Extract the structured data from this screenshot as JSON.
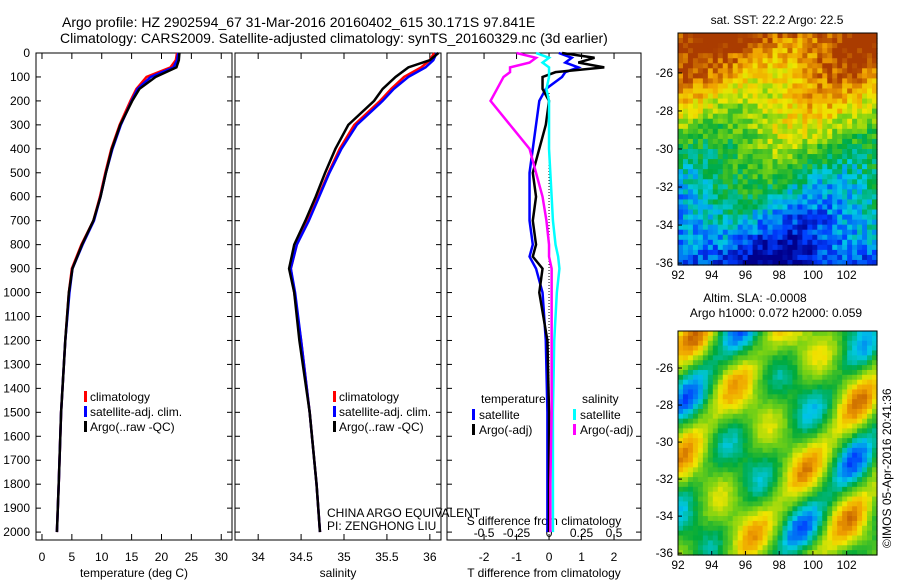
{
  "title_line1": "Argo profile: HZ 2902594_67 31-Mar-2016 20160402_615 30.171S 97.841E",
  "title_line2": "Climatology: CARS2009. Satellite-adjusted climatology: synTS_20160329.nc (3d earlier)",
  "float_info": {
    "line1": "CHINA ARGO EQUIVALENT",
    "line2": "PI: ZENGHONG LIU"
  },
  "credit": "©IMOS 05-Apr-2016 20:41:36",
  "colors": {
    "climatology": "#ff0000",
    "satellite": "#0000ff",
    "argo": "#000000",
    "sal_satellite": "#00ffff",
    "sal_argo": "#ff00ff"
  },
  "chart_data": [
    {
      "type": "line",
      "name": "temperature",
      "xlabel": "temperature (deg C)",
      "ylabel": "",
      "xlim": [
        -1,
        31.8
      ],
      "ylim": [
        2033,
        0
      ],
      "xticks": [
        0,
        5,
        10,
        15,
        20,
        25,
        30
      ],
      "yticks": [
        0,
        100,
        200,
        300,
        400,
        500,
        600,
        700,
        800,
        900,
        1000,
        1100,
        1200,
        1300,
        1400,
        1500,
        1600,
        1700,
        1800,
        1900,
        2000
      ],
      "legend": [
        "climatology",
        "satellite-adj. clim.",
        "Argo(..raw -QC)"
      ],
      "depth": [
        0,
        30,
        60,
        100,
        150,
        200,
        300,
        400,
        500,
        600,
        700,
        800,
        900,
        1000,
        1200,
        1500,
        1800,
        2000
      ],
      "series": [
        {
          "name": "climatology",
          "values": [
            22.6,
            22.4,
            21.5,
            17.5,
            15.8,
            14.8,
            13.0,
            11.6,
            10.6,
            9.7,
            8.6,
            6.6,
            5.0,
            4.5,
            3.9,
            3.2,
            2.8,
            2.5
          ]
        },
        {
          "name": "satellite-adj. clim.",
          "values": [
            22.8,
            22.6,
            22.0,
            18.2,
            16.0,
            15.0,
            13.2,
            11.8,
            10.7,
            9.8,
            8.7,
            6.8,
            5.1,
            4.6,
            3.9,
            3.2,
            2.8,
            2.5
          ]
        },
        {
          "name": "Argo(..raw -QC)",
          "values": [
            23.0,
            22.9,
            22.5,
            19.0,
            16.3,
            15.1,
            13.1,
            11.7,
            10.7,
            9.8,
            8.6,
            6.7,
            5.1,
            4.5,
            3.9,
            3.2,
            2.8,
            2.5
          ]
        }
      ]
    },
    {
      "type": "line",
      "name": "salinity",
      "xlabel": "salinity",
      "xlim": [
        33.73,
        36.13
      ],
      "ylim": [
        2033,
        0
      ],
      "xticks": [
        34,
        34.5,
        35,
        35.5,
        36
      ],
      "legend": [
        "climatology",
        "satellite-adj. clim.",
        "Argo(..raw -QC)"
      ],
      "depth": [
        0,
        30,
        60,
        100,
        150,
        200,
        300,
        400,
        500,
        600,
        700,
        800,
        900,
        1000,
        1200,
        1500,
        1800,
        2000
      ],
      "series": [
        {
          "name": "climatology",
          "values": [
            36.05,
            36.0,
            35.9,
            35.7,
            35.55,
            35.42,
            35.12,
            34.95,
            34.82,
            34.7,
            34.58,
            34.45,
            34.38,
            34.42,
            34.5,
            34.6,
            34.68,
            34.72
          ]
        },
        {
          "name": "satellite-adj. clim.",
          "values": [
            36.08,
            36.04,
            35.95,
            35.75,
            35.58,
            35.45,
            35.15,
            34.97,
            34.83,
            34.71,
            34.59,
            34.45,
            34.38,
            34.43,
            34.5,
            34.6,
            34.68,
            34.72
          ]
        },
        {
          "name": "Argo(..raw -QC)",
          "values": [
            36.1,
            36.0,
            35.75,
            35.6,
            35.45,
            35.35,
            35.05,
            34.9,
            34.78,
            34.67,
            34.55,
            34.42,
            34.36,
            34.42,
            34.48,
            34.6,
            34.68,
            34.72
          ]
        }
      ]
    },
    {
      "type": "line",
      "name": "differences",
      "xlabel": "T difference from climatology",
      "x2label": "S difference from climatology",
      "xlim": [
        -3.14,
        2.83
      ],
      "ylim": [
        2033,
        0
      ],
      "xticks": [
        -2,
        -1,
        0,
        1,
        2
      ],
      "x2ticks": [
        -0.5,
        -0.25,
        0,
        0.25,
        0.5
      ],
      "legend_titles": [
        "temperature",
        "salinity"
      ],
      "legend": [
        "satellite",
        "Argo(-adj)",
        "satellite",
        "Argo(-adj)"
      ],
      "depth": [
        0,
        20,
        40,
        60,
        80,
        100,
        150,
        200,
        300,
        400,
        500,
        600,
        700,
        800,
        850,
        900,
        1000,
        1200,
        1500,
        1800,
        2000
      ],
      "series": [
        {
          "name": "T satellite",
          "values": [
            0.3,
            0.7,
            0.5,
            0.9,
            0.5,
            0.4,
            -0.1,
            -0.3,
            -0.4,
            -0.5,
            -0.6,
            -0.6,
            -0.6,
            -0.5,
            -0.6,
            -0.4,
            -0.2,
            -0.1,
            -0.05,
            -0.05,
            -0.05
          ]
        },
        {
          "name": "T Argo(-adj)",
          "values": [
            0.4,
            1.4,
            0.9,
            1.7,
            0.2,
            -0.2,
            -0.2,
            0.0,
            -0.1,
            -0.3,
            -0.5,
            -0.4,
            -0.5,
            -0.4,
            -0.5,
            -0.2,
            -0.3,
            -0.05,
            0.0,
            0.0,
            0.0
          ]
        },
        {
          "name": "S satellite",
          "values": [
            -0.1,
            0.0,
            -0.05,
            0.0,
            0.0,
            0.0,
            -0.02,
            0.0,
            0.0,
            0.0,
            0.01,
            0.02,
            0.03,
            0.05,
            0.07,
            0.08,
            0.06,
            0.04,
            0.03,
            0.03,
            0.03
          ]
        },
        {
          "name": "S Argo(-adj)",
          "values": [
            -0.25,
            -0.1,
            -0.15,
            -0.3,
            -0.3,
            -0.35,
            -0.4,
            -0.45,
            -0.3,
            -0.15,
            -0.1,
            -0.05,
            -0.02,
            0.0,
            0.0,
            0.02,
            0.02,
            0.02,
            0.02,
            0.01,
            0.01
          ]
        }
      ]
    },
    {
      "type": "heatmap",
      "name": "sst-map",
      "title": "sat. SST: 22.2 Argo: 22.5",
      "xlim": [
        92,
        103.8
      ],
      "ylim": [
        -36.1,
        -23.9
      ],
      "xticks": [
        92,
        94,
        96,
        98,
        100,
        102
      ],
      "yticks": [
        -26,
        -28,
        -30,
        -32,
        -34,
        -36
      ]
    },
    {
      "type": "heatmap",
      "name": "sla-map",
      "title_line1": "Altim. SLA: -0.0008",
      "title_line2": "Argo h1000: 0.072 h2000: 0.059",
      "xlim": [
        92,
        103.8
      ],
      "ylim": [
        -36.1,
        -24.0
      ],
      "xticks": [
        92,
        94,
        96,
        98,
        100,
        102
      ],
      "yticks": [
        -26,
        -28,
        -30,
        -32,
        -34,
        -36
      ]
    }
  ]
}
